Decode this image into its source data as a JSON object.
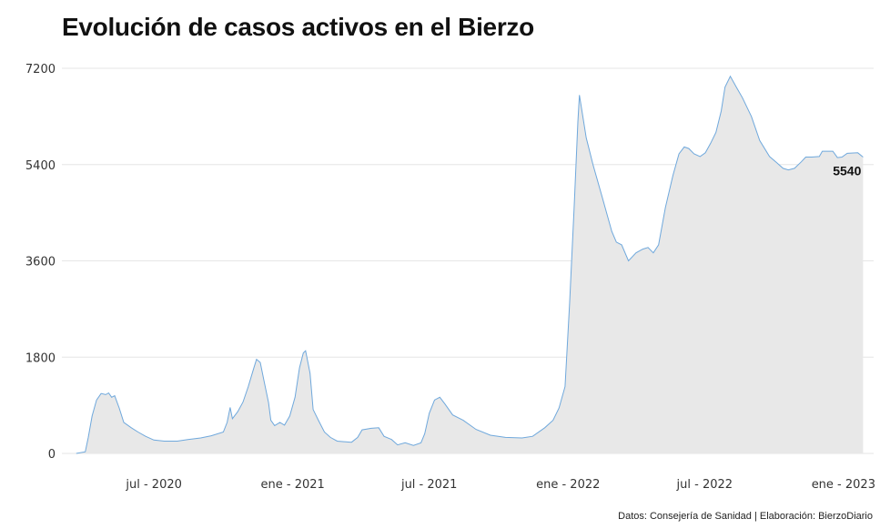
{
  "chart_data": {
    "type": "area",
    "title": "Evolución de casos activos en el Bierzo",
    "source": "Datos: Consejería de Sanidad | Elaboración: BierzoDiario",
    "ylim": [
      0,
      7200
    ],
    "yticks": [
      0,
      1800,
      3600,
      5400,
      7200
    ],
    "xlim": [
      "2020-03-01",
      "2023-02-10"
    ],
    "xticks": [
      {
        "label": "jul - 2020",
        "date": "2020-07-01"
      },
      {
        "label": "ene - 2021",
        "date": "2021-01-01"
      },
      {
        "label": "jul - 2021",
        "date": "2021-07-01"
      },
      {
        "label": "ene - 2022",
        "date": "2022-01-01"
      },
      {
        "label": "jul - 2022",
        "date": "2022-07-01"
      },
      {
        "label": "ene - 2023",
        "date": "2023-01-01"
      }
    ],
    "grid": true,
    "line_color": "#6fa8dc",
    "fill_color": "#e8e8e8",
    "last_label": "5540",
    "series": [
      {
        "points": [
          [
            "2020-03-20",
            0
          ],
          [
            "2020-04-01",
            30
          ],
          [
            "2020-04-05",
            300
          ],
          [
            "2020-04-10",
            700
          ],
          [
            "2020-04-16",
            1000
          ],
          [
            "2020-04-22",
            1120
          ],
          [
            "2020-04-28",
            1100
          ],
          [
            "2020-05-02",
            1130
          ],
          [
            "2020-05-06",
            1050
          ],
          [
            "2020-05-10",
            1080
          ],
          [
            "2020-05-16",
            850
          ],
          [
            "2020-05-22",
            580
          ],
          [
            "2020-06-01",
            480
          ],
          [
            "2020-06-10",
            400
          ],
          [
            "2020-06-20",
            320
          ],
          [
            "2020-07-01",
            250
          ],
          [
            "2020-07-15",
            230
          ],
          [
            "2020-08-01",
            230
          ],
          [
            "2020-08-15",
            260
          ],
          [
            "2020-09-01",
            290
          ],
          [
            "2020-09-15",
            330
          ],
          [
            "2020-10-01",
            400
          ],
          [
            "2020-10-06",
            580
          ],
          [
            "2020-10-10",
            860
          ],
          [
            "2020-10-13",
            650
          ],
          [
            "2020-10-20",
            780
          ],
          [
            "2020-10-27",
            960
          ],
          [
            "2020-11-03",
            1250
          ],
          [
            "2020-11-10",
            1580
          ],
          [
            "2020-11-14",
            1760
          ],
          [
            "2020-11-19",
            1700
          ],
          [
            "2020-11-24",
            1350
          ],
          [
            "2020-11-30",
            950
          ],
          [
            "2020-12-03",
            620
          ],
          [
            "2020-12-08",
            520
          ],
          [
            "2020-12-15",
            580
          ],
          [
            "2020-12-21",
            530
          ],
          [
            "2020-12-28",
            700
          ],
          [
            "2021-01-04",
            1050
          ],
          [
            "2021-01-10",
            1600
          ],
          [
            "2021-01-15",
            1880
          ],
          [
            "2021-01-18",
            1920
          ],
          [
            "2021-01-24",
            1500
          ],
          [
            "2021-01-28",
            820
          ],
          [
            "2021-02-04",
            620
          ],
          [
            "2021-02-12",
            400
          ],
          [
            "2021-02-20",
            300
          ],
          [
            "2021-03-01",
            230
          ],
          [
            "2021-03-10",
            220
          ],
          [
            "2021-03-20",
            210
          ],
          [
            "2021-03-28",
            300
          ],
          [
            "2021-04-03",
            440
          ],
          [
            "2021-04-15",
            470
          ],
          [
            "2021-04-25",
            480
          ],
          [
            "2021-05-02",
            320
          ],
          [
            "2021-05-12",
            260
          ],
          [
            "2021-05-20",
            160
          ],
          [
            "2021-05-30",
            200
          ],
          [
            "2021-06-10",
            150
          ],
          [
            "2021-06-20",
            200
          ],
          [
            "2021-06-25",
            370
          ],
          [
            "2021-07-01",
            750
          ],
          [
            "2021-07-08",
            1000
          ],
          [
            "2021-07-15",
            1050
          ],
          [
            "2021-07-22",
            920
          ],
          [
            "2021-08-01",
            720
          ],
          [
            "2021-08-15",
            620
          ],
          [
            "2021-09-01",
            450
          ],
          [
            "2021-09-20",
            340
          ],
          [
            "2021-10-10",
            300
          ],
          [
            "2021-11-01",
            290
          ],
          [
            "2021-11-15",
            320
          ],
          [
            "2021-12-01",
            480
          ],
          [
            "2021-12-12",
            620
          ],
          [
            "2021-12-20",
            850
          ],
          [
            "2021-12-28",
            1250
          ],
          [
            "2022-01-03",
            2800
          ],
          [
            "2022-01-09",
            4600
          ],
          [
            "2022-01-14",
            6200
          ],
          [
            "2022-01-16",
            6700
          ],
          [
            "2022-01-25",
            5900
          ],
          [
            "2022-02-03",
            5400
          ],
          [
            "2022-02-15",
            4800
          ],
          [
            "2022-02-28",
            4150
          ],
          [
            "2022-03-06",
            3950
          ],
          [
            "2022-03-13",
            3900
          ],
          [
            "2022-03-22",
            3600
          ],
          [
            "2022-04-01",
            3750
          ],
          [
            "2022-04-10",
            3820
          ],
          [
            "2022-04-17",
            3850
          ],
          [
            "2022-04-24",
            3750
          ],
          [
            "2022-05-01",
            3900
          ],
          [
            "2022-05-10",
            4600
          ],
          [
            "2022-05-20",
            5200
          ],
          [
            "2022-05-28",
            5600
          ],
          [
            "2022-06-04",
            5730
          ],
          [
            "2022-06-10",
            5700
          ],
          [
            "2022-06-17",
            5600
          ],
          [
            "2022-06-25",
            5550
          ],
          [
            "2022-07-02",
            5620
          ],
          [
            "2022-07-09",
            5800
          ],
          [
            "2022-07-16",
            6000
          ],
          [
            "2022-07-23",
            6400
          ],
          [
            "2022-07-28",
            6850
          ],
          [
            "2022-08-04",
            7050
          ],
          [
            "2022-08-12",
            6850
          ],
          [
            "2022-08-20",
            6650
          ],
          [
            "2022-09-01",
            6300
          ],
          [
            "2022-09-12",
            5850
          ],
          [
            "2022-09-25",
            5550
          ],
          [
            "2022-10-05",
            5430
          ],
          [
            "2022-10-13",
            5330
          ],
          [
            "2022-10-20",
            5300
          ],
          [
            "2022-10-28",
            5330
          ],
          [
            "2022-11-06",
            5450
          ],
          [
            "2022-11-12",
            5540
          ],
          [
            "2022-11-20",
            5540
          ],
          [
            "2022-11-30",
            5550
          ],
          [
            "2022-12-04",
            5650
          ],
          [
            "2022-12-18",
            5650
          ],
          [
            "2022-12-24",
            5530
          ],
          [
            "2022-12-30",
            5540
          ],
          [
            "2023-01-06",
            5610
          ],
          [
            "2023-01-20",
            5620
          ],
          [
            "2023-01-27",
            5540
          ]
        ]
      }
    ]
  }
}
